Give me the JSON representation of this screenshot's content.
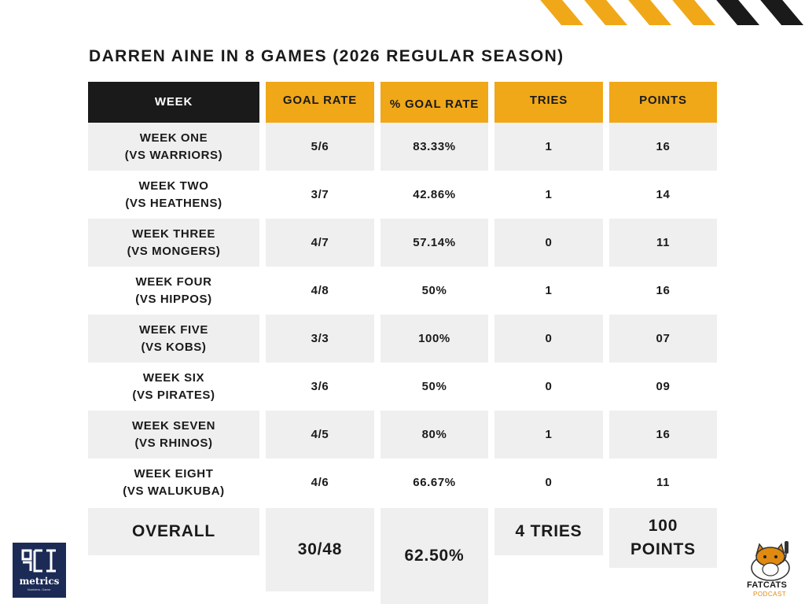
{
  "title": "DARREN AINE IN 8 GAMES (2026 REGULAR SEASON)",
  "colors": {
    "gold": "#f0a818",
    "dark": "#1a1a1a",
    "cell": "#efefef",
    "navy": "#1b2b55"
  },
  "table": {
    "headers": [
      "WEEK",
      "GOAL RATE",
      "% GOAL RATE",
      "TRIES",
      "POINTS"
    ],
    "rows": [
      {
        "week": "WEEK ONE",
        "opponent": "(VS WARRIORS)",
        "goal_rate": "5/6",
        "pct_goal_rate": "83.33%",
        "tries": "1",
        "points": "16"
      },
      {
        "week": "WEEK TWO",
        "opponent": "(VS HEATHENS)",
        "goal_rate": "3/7",
        "pct_goal_rate": "42.86%",
        "tries": "1",
        "points": "14"
      },
      {
        "week": "WEEK THREE",
        "opponent": "(VS MONGERS)",
        "goal_rate": "4/7",
        "pct_goal_rate": "57.14%",
        "tries": "0",
        "points": "11"
      },
      {
        "week": "WEEK FOUR",
        "opponent": "(VS HIPPOS)",
        "goal_rate": "4/8",
        "pct_goal_rate": "50%",
        "tries": "1",
        "points": "16"
      },
      {
        "week": "WEEK FIVE",
        "opponent": "(VS KOBS)",
        "goal_rate": "3/3",
        "pct_goal_rate": "100%",
        "tries": "0",
        "points": "07"
      },
      {
        "week": "WEEK SIX",
        "opponent": "(VS PIRATES)",
        "goal_rate": "3/6",
        "pct_goal_rate": "50%",
        "tries": "0",
        "points": "09"
      },
      {
        "week": "WEEK SEVEN",
        "opponent": "(VS RHINOS)",
        "goal_rate": "4/5",
        "pct_goal_rate": "80%",
        "tries": "1",
        "points": "16"
      },
      {
        "week": "WEEK EIGHT",
        "opponent": "(VS WALUKUBA)",
        "goal_rate": "4/6",
        "pct_goal_rate": "66.67%",
        "tries": "0",
        "points": "11"
      }
    ],
    "overall": {
      "label": "OVERALL",
      "goal_rate": "30/48",
      "pct_goal_rate": "62.50%",
      "tries": "4 TRIES",
      "points": "100",
      "points_unit": "POINTS"
    }
  },
  "logos": {
    "metrics_word": "metrics",
    "metrics_tagline": "Numbers. Game.",
    "fatcats_word": "FATCATS",
    "fatcats_sub": "PODCAST"
  }
}
